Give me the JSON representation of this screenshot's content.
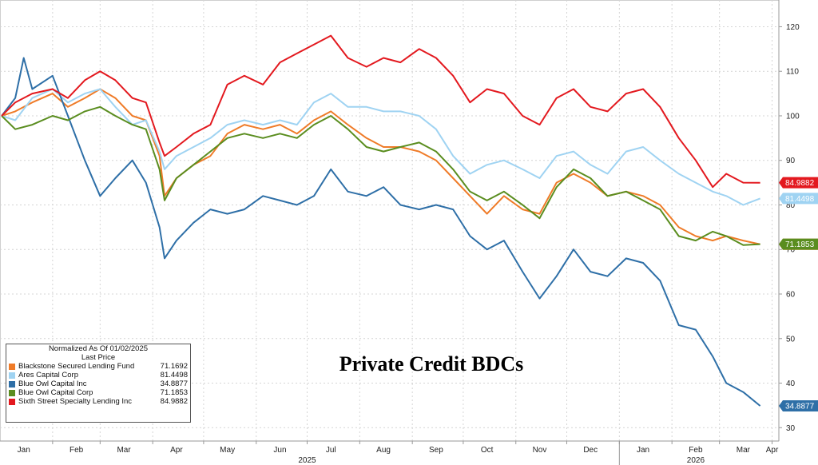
{
  "chart_data": {
    "type": "line",
    "title": "Private Credit BDCs",
    "legend": {
      "placement": "bottom-left",
      "header": "Normalized As Of 01/02/2025",
      "subheader": "Last Price"
    },
    "y_axis": {
      "side": "right",
      "ylim": [
        27,
        126
      ],
      "ticks": [
        30,
        40,
        50,
        60,
        70,
        80,
        90,
        100,
        110,
        120
      ]
    },
    "x_axis": {
      "xlim": [
        "2025-01-01",
        "2026-04-05"
      ],
      "month_ticks": [
        {
          "date": "2025-01-15",
          "label": "Jan"
        },
        {
          "date": "2025-02-15",
          "label": "Feb"
        },
        {
          "date": "2025-03-15",
          "label": "Mar"
        },
        {
          "date": "2025-04-15",
          "label": "Apr"
        },
        {
          "date": "2025-05-15",
          "label": "May"
        },
        {
          "date": "2025-06-15",
          "label": "Jun"
        },
        {
          "date": "2025-07-15",
          "label": "Jul"
        },
        {
          "date": "2025-08-15",
          "label": "Aug"
        },
        {
          "date": "2025-09-15",
          "label": "Sep"
        },
        {
          "date": "2025-10-15",
          "label": "Oct"
        },
        {
          "date": "2025-11-15",
          "label": "Nov"
        },
        {
          "date": "2025-12-15",
          "label": "Dec"
        },
        {
          "date": "2026-01-15",
          "label": "Jan"
        },
        {
          "date": "2026-02-15",
          "label": "Feb"
        },
        {
          "date": "2026-03-15",
          "label": "Mar"
        },
        {
          "date": "2026-04-01",
          "label": "Apr"
        }
      ],
      "year_labels": [
        {
          "date": "2025-07-01",
          "label": "2025"
        },
        {
          "date": "2026-02-15",
          "label": "2026"
        }
      ],
      "year_separator": "2026-01-01"
    },
    "grid": true,
    "series": [
      {
        "name": "Blackstone Secured Lending Fund",
        "last_price": "71.1692",
        "color": "#ef7b28",
        "points": [
          [
            "2025-01-02",
            100
          ],
          [
            "2025-01-10",
            101
          ],
          [
            "2025-01-20",
            103
          ],
          [
            "2025-02-01",
            105
          ],
          [
            "2025-02-10",
            102
          ],
          [
            "2025-02-20",
            104
          ],
          [
            "2025-03-01",
            106
          ],
          [
            "2025-03-10",
            104
          ],
          [
            "2025-03-20",
            100
          ],
          [
            "2025-03-28",
            99
          ],
          [
            "2025-04-05",
            91
          ],
          [
            "2025-04-08",
            82
          ],
          [
            "2025-04-15",
            86
          ],
          [
            "2025-04-25",
            89
          ],
          [
            "2025-05-05",
            91
          ],
          [
            "2025-05-15",
            96
          ],
          [
            "2025-05-25",
            98
          ],
          [
            "2025-06-05",
            97
          ],
          [
            "2025-06-15",
            98
          ],
          [
            "2025-06-25",
            96
          ],
          [
            "2025-07-05",
            99
          ],
          [
            "2025-07-15",
            101
          ],
          [
            "2025-07-25",
            98
          ],
          [
            "2025-08-05",
            95
          ],
          [
            "2025-08-15",
            93
          ],
          [
            "2025-08-25",
            93
          ],
          [
            "2025-09-05",
            92
          ],
          [
            "2025-09-15",
            90
          ],
          [
            "2025-09-25",
            86
          ],
          [
            "2025-10-05",
            82
          ],
          [
            "2025-10-15",
            78
          ],
          [
            "2025-10-25",
            82
          ],
          [
            "2025-11-05",
            79
          ],
          [
            "2025-11-15",
            78
          ],
          [
            "2025-11-25",
            85
          ],
          [
            "2025-12-05",
            87
          ],
          [
            "2025-12-15",
            85
          ],
          [
            "2025-12-25",
            82
          ],
          [
            "2026-01-05",
            83
          ],
          [
            "2026-01-15",
            82
          ],
          [
            "2026-01-25",
            80
          ],
          [
            "2026-02-05",
            75
          ],
          [
            "2026-02-15",
            73
          ],
          [
            "2026-02-25",
            72
          ],
          [
            "2026-03-05",
            73
          ],
          [
            "2026-03-15",
            72
          ],
          [
            "2026-03-25",
            71.17
          ]
        ]
      },
      {
        "name": "Ares Capital Corp",
        "last_price": "81.4498",
        "color": "#9fd3f2",
        "points": [
          [
            "2025-01-02",
            100
          ],
          [
            "2025-01-10",
            99
          ],
          [
            "2025-01-20",
            104
          ],
          [
            "2025-02-01",
            106
          ],
          [
            "2025-02-10",
            103
          ],
          [
            "2025-02-20",
            105
          ],
          [
            "2025-03-01",
            106
          ],
          [
            "2025-03-10",
            102
          ],
          [
            "2025-03-20",
            98
          ],
          [
            "2025-03-28",
            99
          ],
          [
            "2025-04-05",
            92
          ],
          [
            "2025-04-08",
            88
          ],
          [
            "2025-04-15",
            91
          ],
          [
            "2025-04-25",
            93
          ],
          [
            "2025-05-05",
            95
          ],
          [
            "2025-05-15",
            98
          ],
          [
            "2025-05-25",
            99
          ],
          [
            "2025-06-05",
            98
          ],
          [
            "2025-06-15",
            99
          ],
          [
            "2025-06-25",
            98
          ],
          [
            "2025-07-05",
            103
          ],
          [
            "2025-07-15",
            105
          ],
          [
            "2025-07-25",
            102
          ],
          [
            "2025-08-05",
            102
          ],
          [
            "2025-08-15",
            101
          ],
          [
            "2025-08-25",
            101
          ],
          [
            "2025-09-05",
            100
          ],
          [
            "2025-09-15",
            97
          ],
          [
            "2025-09-25",
            91
          ],
          [
            "2025-10-05",
            87
          ],
          [
            "2025-10-15",
            89
          ],
          [
            "2025-10-25",
            90
          ],
          [
            "2025-11-05",
            88
          ],
          [
            "2025-11-15",
            86
          ],
          [
            "2025-11-25",
            91
          ],
          [
            "2025-12-05",
            92
          ],
          [
            "2025-12-15",
            89
          ],
          [
            "2025-12-25",
            87
          ],
          [
            "2026-01-05",
            92
          ],
          [
            "2026-01-15",
            93
          ],
          [
            "2026-01-25",
            90
          ],
          [
            "2026-02-05",
            87
          ],
          [
            "2026-02-15",
            85
          ],
          [
            "2026-02-25",
            83
          ],
          [
            "2026-03-05",
            82
          ],
          [
            "2026-03-15",
            80
          ],
          [
            "2026-03-25",
            81.45
          ]
        ]
      },
      {
        "name": "Blue Owl Capital Inc",
        "last_price": "34.8877",
        "color": "#2e6fa7",
        "points": [
          [
            "2025-01-02",
            100
          ],
          [
            "2025-01-10",
            104
          ],
          [
            "2025-01-15",
            113
          ],
          [
            "2025-01-20",
            106
          ],
          [
            "2025-02-01",
            109
          ],
          [
            "2025-02-10",
            100
          ],
          [
            "2025-02-20",
            90
          ],
          [
            "2025-03-01",
            82
          ],
          [
            "2025-03-10",
            86
          ],
          [
            "2025-03-20",
            90
          ],
          [
            "2025-03-28",
            85
          ],
          [
            "2025-04-05",
            75
          ],
          [
            "2025-04-08",
            68
          ],
          [
            "2025-04-15",
            72
          ],
          [
            "2025-04-25",
            76
          ],
          [
            "2025-05-05",
            79
          ],
          [
            "2025-05-15",
            78
          ],
          [
            "2025-05-25",
            79
          ],
          [
            "2025-06-05",
            82
          ],
          [
            "2025-06-15",
            81
          ],
          [
            "2025-06-25",
            80
          ],
          [
            "2025-07-05",
            82
          ],
          [
            "2025-07-15",
            88
          ],
          [
            "2025-07-25",
            83
          ],
          [
            "2025-08-05",
            82
          ],
          [
            "2025-08-15",
            84
          ],
          [
            "2025-08-25",
            80
          ],
          [
            "2025-09-05",
            79
          ],
          [
            "2025-09-15",
            80
          ],
          [
            "2025-09-25",
            79
          ],
          [
            "2025-10-05",
            73
          ],
          [
            "2025-10-15",
            70
          ],
          [
            "2025-10-25",
            72
          ],
          [
            "2025-11-05",
            65
          ],
          [
            "2025-11-15",
            59
          ],
          [
            "2025-11-25",
            64
          ],
          [
            "2025-12-05",
            70
          ],
          [
            "2025-12-15",
            65
          ],
          [
            "2025-12-25",
            64
          ],
          [
            "2026-01-05",
            68
          ],
          [
            "2026-01-15",
            67
          ],
          [
            "2026-01-25",
            63
          ],
          [
            "2026-02-05",
            53
          ],
          [
            "2026-02-15",
            52
          ],
          [
            "2026-02-25",
            46
          ],
          [
            "2026-03-05",
            40
          ],
          [
            "2026-03-15",
            38
          ],
          [
            "2026-03-25",
            34.89
          ]
        ]
      },
      {
        "name": "Blue Owl Capital Corp",
        "last_price": "71.1853",
        "color": "#5a8d1f",
        "points": [
          [
            "2025-01-02",
            100
          ],
          [
            "2025-01-10",
            97
          ],
          [
            "2025-01-20",
            98
          ],
          [
            "2025-02-01",
            100
          ],
          [
            "2025-02-10",
            99
          ],
          [
            "2025-02-20",
            101
          ],
          [
            "2025-03-01",
            102
          ],
          [
            "2025-03-10",
            100
          ],
          [
            "2025-03-20",
            98
          ],
          [
            "2025-03-28",
            97
          ],
          [
            "2025-04-05",
            88
          ],
          [
            "2025-04-08",
            81
          ],
          [
            "2025-04-15",
            86
          ],
          [
            "2025-04-25",
            89
          ],
          [
            "2025-05-05",
            92
          ],
          [
            "2025-05-15",
            95
          ],
          [
            "2025-05-25",
            96
          ],
          [
            "2025-06-05",
            95
          ],
          [
            "2025-06-15",
            96
          ],
          [
            "2025-06-25",
            95
          ],
          [
            "2025-07-05",
            98
          ],
          [
            "2025-07-15",
            100
          ],
          [
            "2025-07-25",
            97
          ],
          [
            "2025-08-05",
            93
          ],
          [
            "2025-08-15",
            92
          ],
          [
            "2025-08-25",
            93
          ],
          [
            "2025-09-05",
            94
          ],
          [
            "2025-09-15",
            92
          ],
          [
            "2025-09-25",
            88
          ],
          [
            "2025-10-05",
            83
          ],
          [
            "2025-10-15",
            81
          ],
          [
            "2025-10-25",
            83
          ],
          [
            "2025-11-05",
            80
          ],
          [
            "2025-11-15",
            77
          ],
          [
            "2025-11-25",
            84
          ],
          [
            "2025-12-05",
            88
          ],
          [
            "2025-12-15",
            86
          ],
          [
            "2025-12-25",
            82
          ],
          [
            "2026-01-05",
            83
          ],
          [
            "2026-01-15",
            81
          ],
          [
            "2026-01-25",
            79
          ],
          [
            "2026-02-05",
            73
          ],
          [
            "2026-02-15",
            72
          ],
          [
            "2026-02-25",
            74
          ],
          [
            "2026-03-05",
            73
          ],
          [
            "2026-03-15",
            71
          ],
          [
            "2026-03-25",
            71.19
          ]
        ]
      },
      {
        "name": "Sixth Street Specialty Lending Inc",
        "last_price": "84.9882",
        "color": "#e3191f",
        "points": [
          [
            "2025-01-02",
            100
          ],
          [
            "2025-01-10",
            103
          ],
          [
            "2025-01-20",
            105
          ],
          [
            "2025-02-01",
            106
          ],
          [
            "2025-02-10",
            104
          ],
          [
            "2025-02-20",
            108
          ],
          [
            "2025-03-01",
            110
          ],
          [
            "2025-03-10",
            108
          ],
          [
            "2025-03-20",
            104
          ],
          [
            "2025-03-28",
            103
          ],
          [
            "2025-04-05",
            94
          ],
          [
            "2025-04-08",
            91
          ],
          [
            "2025-04-15",
            93
          ],
          [
            "2025-04-25",
            96
          ],
          [
            "2025-05-05",
            98
          ],
          [
            "2025-05-15",
            107
          ],
          [
            "2025-05-25",
            109
          ],
          [
            "2025-06-05",
            107
          ],
          [
            "2025-06-15",
            112
          ],
          [
            "2025-06-25",
            114
          ],
          [
            "2025-07-05",
            116
          ],
          [
            "2025-07-15",
            118
          ],
          [
            "2025-07-25",
            113
          ],
          [
            "2025-08-05",
            111
          ],
          [
            "2025-08-15",
            113
          ],
          [
            "2025-08-25",
            112
          ],
          [
            "2025-09-05",
            115
          ],
          [
            "2025-09-15",
            113
          ],
          [
            "2025-09-25",
            109
          ],
          [
            "2025-10-05",
            103
          ],
          [
            "2025-10-15",
            106
          ],
          [
            "2025-10-25",
            105
          ],
          [
            "2025-11-05",
            100
          ],
          [
            "2025-11-15",
            98
          ],
          [
            "2025-11-25",
            104
          ],
          [
            "2025-12-05",
            106
          ],
          [
            "2025-12-15",
            102
          ],
          [
            "2025-12-25",
            101
          ],
          [
            "2026-01-05",
            105
          ],
          [
            "2026-01-15",
            106
          ],
          [
            "2026-01-25",
            102
          ],
          [
            "2026-02-05",
            95
          ],
          [
            "2026-02-15",
            90
          ],
          [
            "2026-02-25",
            84
          ],
          [
            "2026-03-05",
            87
          ],
          [
            "2026-03-15",
            85
          ],
          [
            "2026-03-25",
            84.99
          ]
        ]
      }
    ]
  }
}
